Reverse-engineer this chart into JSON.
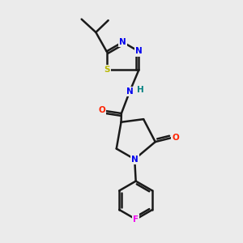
{
  "background_color": "#ebebeb",
  "bond_color": "#1a1a1a",
  "bond_width": 1.8,
  "atoms": {
    "N_blue": "#0000ee",
    "O_red": "#ff2200",
    "S_yellow": "#b8b800",
    "F_magenta": "#ee00ee",
    "H_teal": "#008080"
  },
  "fig_width": 3.0,
  "fig_height": 3.0,
  "dpi": 100,
  "xlim": [
    0,
    10
  ],
  "ylim": [
    0,
    10
  ],
  "fontsize": 7.5
}
